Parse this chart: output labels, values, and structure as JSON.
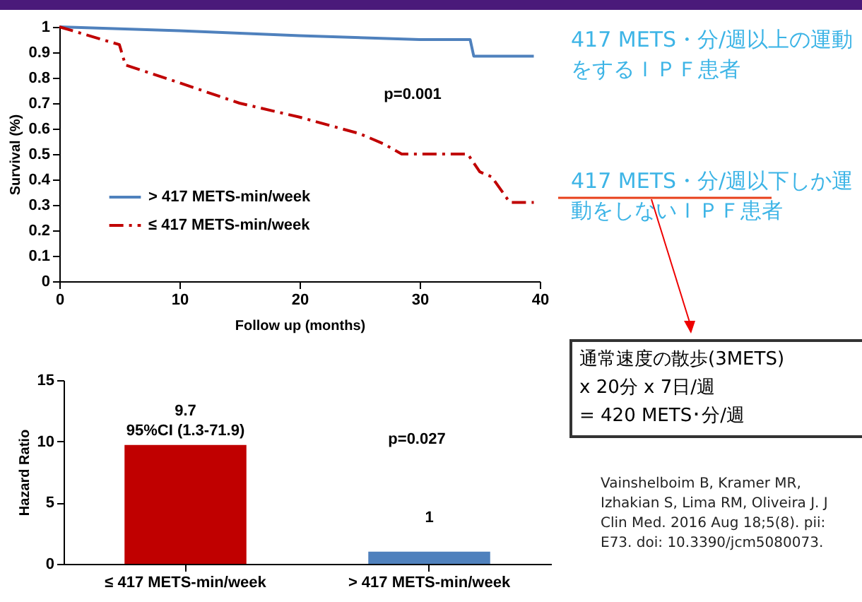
{
  "chart_data": [
    {
      "type": "line",
      "xlabel": "Follow up (months)",
      "ylabel": "Survival (%)",
      "xlim": [
        0,
        40
      ],
      "xticks": [
        0,
        10,
        20,
        30,
        40
      ],
      "ylim": [
        0,
        1
      ],
      "yticks": [
        0,
        0.1,
        0.2,
        0.3,
        0.4,
        0.5,
        0.6,
        0.7,
        0.8,
        0.9,
        1
      ],
      "grid": false,
      "legend": "bottom left",
      "marker": "none",
      "annotations": [
        "p=0.001"
      ],
      "series": [
        {
          "name": "> 417 METS-min/week",
          "color": "#4f81bd",
          "line_style": "solid",
          "x": [
            0,
            10,
            20,
            30,
            34.2,
            34.5,
            39.5
          ],
          "values": [
            1,
            0.985,
            0.965,
            0.95,
            0.95,
            0.885,
            0.885
          ]
        },
        {
          "name": "≤ 417 METS-min/week",
          "color": "#c00000",
          "line_style": "dashed",
          "x": [
            0,
            5,
            5.5,
            10,
            15,
            20,
            25,
            27,
            28.5,
            34,
            35,
            36,
            37.5,
            39.5
          ],
          "values": [
            1,
            0.93,
            0.85,
            0.78,
            0.7,
            0.645,
            0.58,
            0.54,
            0.5,
            0.5,
            0.43,
            0.41,
            0.31,
            0.31
          ]
        }
      ]
    },
    {
      "type": "bar",
      "ylabel": "Hazard Ratio",
      "categories": [
        "≤ 417 METS-min/week",
        "> 417 METS-min/week"
      ],
      "values": [
        9.7,
        1
      ],
      "colors": [
        "#c00000",
        "#4f81bd"
      ],
      "value_labels": [
        "9.7",
        "1"
      ],
      "ylim": [
        0,
        15
      ],
      "yticks": [
        0,
        5,
        10,
        15
      ],
      "grid": false,
      "annotations": [
        {
          "text": "95%CI (1.3-71.9)",
          "x": "≤ 417 METS-min/week",
          "y": 9.7
        },
        "p=0.027"
      ]
    },
    {
      "type": "other",
      "annotations": [
        "417 METS・分/週以上の運動をするＩＰＦ患者",
        "417 METS・分/週以下しか運動をしないＩＰＦ患者",
        "通常速度の散歩(3METS)\nx 20分 x 7日/週\n= 420 METS･分/週",
        "Vainshelboim B, Kramer MR, Izhakian S, Lima RM, Oliveira J. J Clin Med. 2016 Aug 18;5(8). pii: E73. doi: 10.3390/jcm5080073."
      ]
    }
  ]
}
